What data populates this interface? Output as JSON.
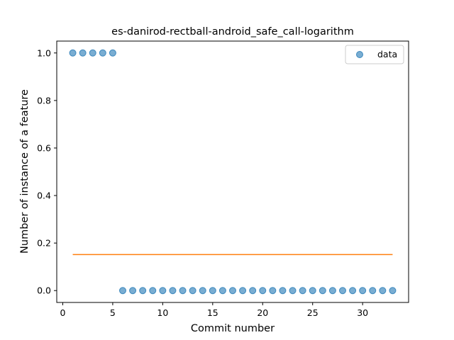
{
  "chart_data": {
    "type": "scatter",
    "title": "es-danirod-rectball-android_safe_call-logarithm",
    "xlabel": "Commit number",
    "ylabel": "Number of instance of a feature",
    "xlim": [
      -0.6,
      34.6
    ],
    "ylim": [
      -0.05,
      1.05
    ],
    "xticks": [
      0,
      5,
      10,
      15,
      20,
      25,
      30
    ],
    "xtick_labels": [
      "0",
      "5",
      "10",
      "15",
      "20",
      "25",
      "30"
    ],
    "yticks": [
      0.0,
      0.2,
      0.4,
      0.6,
      0.8,
      1.0
    ],
    "ytick_labels": [
      "0.0",
      "0.2",
      "0.4",
      "0.6",
      "0.8",
      "1.0"
    ],
    "grid": false,
    "legend": {
      "placement": "top-right",
      "entries": [
        "data"
      ]
    },
    "series": [
      {
        "name": "data",
        "kind": "scatter",
        "color": "#1f77b4",
        "x": [
          1,
          2,
          3,
          4,
          5,
          6,
          7,
          8,
          9,
          10,
          11,
          12,
          13,
          14,
          15,
          16,
          17,
          18,
          19,
          20,
          21,
          22,
          23,
          24,
          25,
          26,
          27,
          28,
          29,
          30,
          31,
          32,
          33
        ],
        "y": [
          1,
          1,
          1,
          1,
          1,
          0,
          0,
          0,
          0,
          0,
          0,
          0,
          0,
          0,
          0,
          0,
          0,
          0,
          0,
          0,
          0,
          0,
          0,
          0,
          0,
          0,
          0,
          0,
          0,
          0,
          0,
          0,
          0
        ]
      },
      {
        "kind": "line",
        "color": "#ff7f0e",
        "x": [
          1,
          33
        ],
        "y": [
          0.1515,
          0.1515
        ]
      }
    ]
  }
}
